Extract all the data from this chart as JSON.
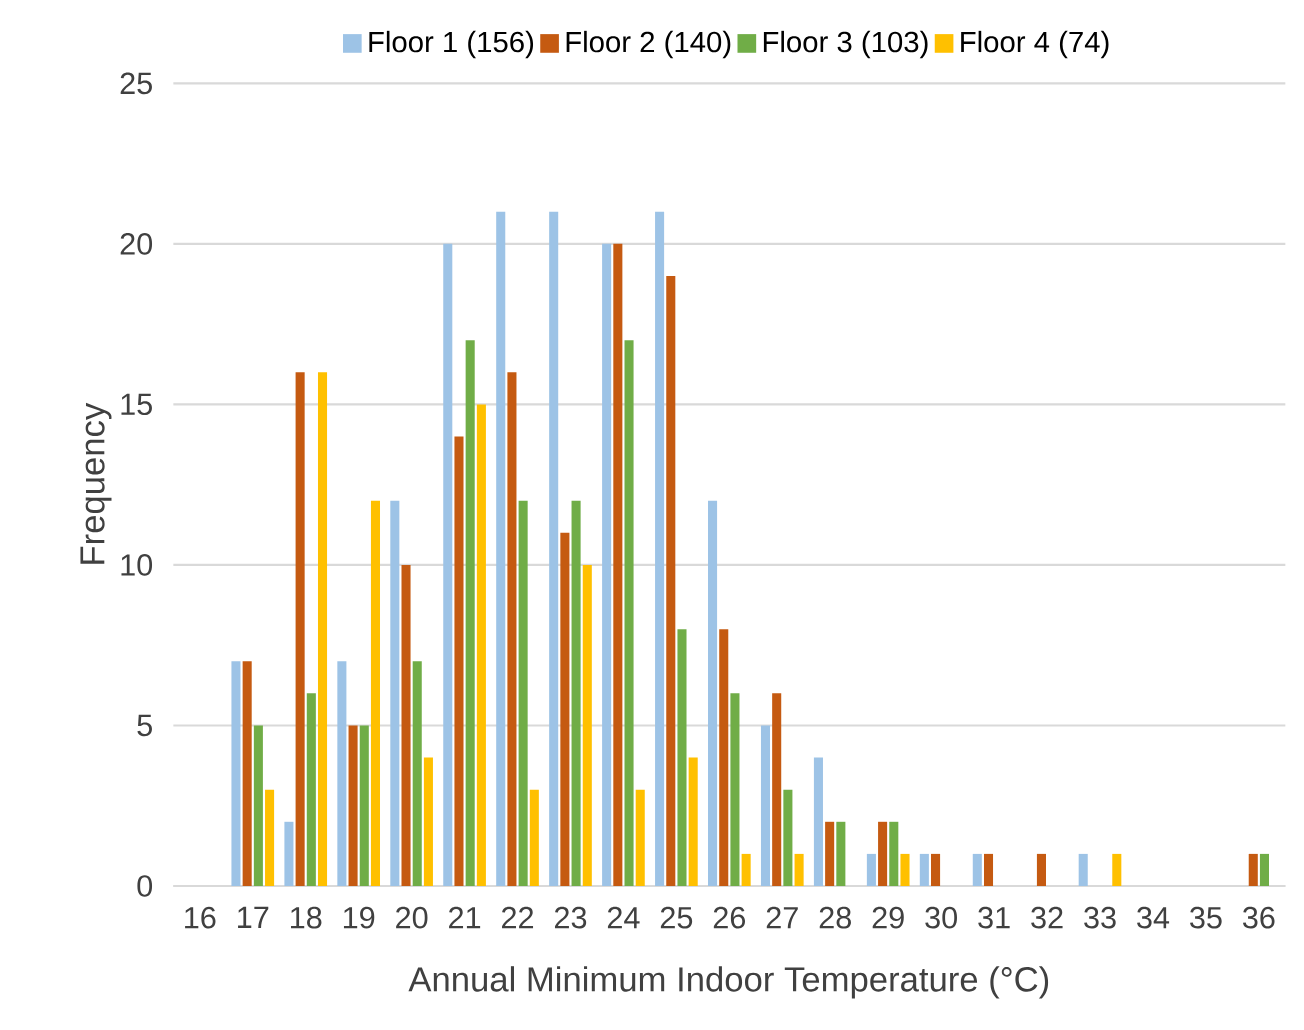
{
  "chart_data": {
    "type": "bar",
    "xlabel": "Annual Minimum Indoor Temperature (°C)",
    "ylabel": "Frequency",
    "categories": [
      "16",
      "17",
      "18",
      "19",
      "20",
      "21",
      "22",
      "23",
      "24",
      "25",
      "26",
      "27",
      "28",
      "29",
      "30",
      "31",
      "32",
      "33",
      "34",
      "35",
      "36"
    ],
    "series": [
      {
        "name": "Floor 1 (156)",
        "color": "#9dc3e6",
        "values": [
          0,
          7,
          2,
          7,
          12,
          20,
          21,
          21,
          20,
          21,
          12,
          5,
          4,
          1,
          1,
          1,
          0,
          1,
          0,
          0,
          0
        ]
      },
      {
        "name": "Floor 2 (140)",
        "color": "#c55a11",
        "values": [
          0,
          7,
          16,
          5,
          10,
          14,
          16,
          11,
          20,
          19,
          8,
          6,
          2,
          2,
          1,
          1,
          1,
          0,
          0,
          0,
          1
        ]
      },
      {
        "name": "Floor 3 (103)",
        "color": "#70ad47",
        "values": [
          0,
          5,
          6,
          5,
          7,
          17,
          12,
          12,
          17,
          8,
          6,
          3,
          2,
          2,
          0,
          0,
          0,
          0,
          0,
          0,
          1
        ]
      },
      {
        "name": "Floor 4 (74)",
        "color": "#ffc000",
        "values": [
          0,
          3,
          16,
          12,
          4,
          15,
          3,
          10,
          3,
          4,
          1,
          1,
          0,
          1,
          0,
          0,
          0,
          1,
          0,
          0,
          0
        ]
      }
    ],
    "ylim": [
      0,
      25
    ],
    "yticks": [
      0,
      5,
      10,
      15,
      20,
      25
    ],
    "grid": "y",
    "legend": "top"
  }
}
